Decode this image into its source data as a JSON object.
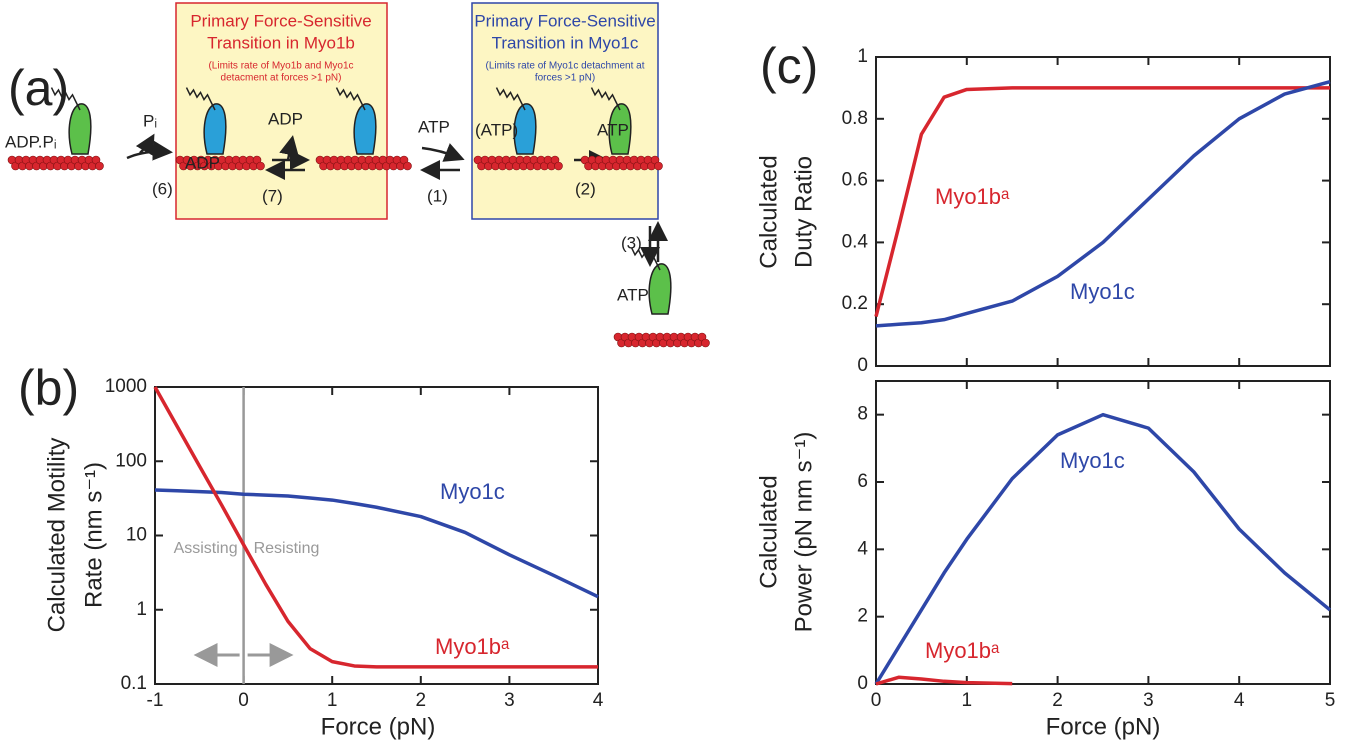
{
  "panel_labels": [
    "(a)",
    "(b)",
    "(c)"
  ],
  "diagram": {
    "box1": {
      "title": [
        "Primary Force-Sensitive",
        "Transition in Myo1b"
      ],
      "subtitle": [
        "(Limits rate of Myo1b and Myo1c",
        "detacment at forces >1 pN)"
      ]
    },
    "box2": {
      "title": [
        "Primary Force-Sensitive",
        "Transition in Myo1c"
      ],
      "subtitle": [
        "(Limits rate of Myo1c detachment at",
        "forces >1 pN)"
      ]
    },
    "labels": [
      "ADP.Pᵢ",
      "Pᵢ",
      "(6)",
      "ADP",
      "ADP",
      "(7)",
      "ATP",
      "(1)",
      "(ATP)",
      "(2)",
      "ATP",
      "(3)",
      "ATP"
    ]
  },
  "chart_data": [
    {
      "type": "line",
      "xlabel": "Force (pN)",
      "ylabel": [
        "Calculated Motility",
        "Rate (nm s⁻¹)"
      ],
      "x": [
        -1,
        -0.75,
        -0.5,
        -0.25,
        0,
        0.25,
        0.5,
        0.75,
        1,
        1.25,
        1.5,
        2,
        2.5,
        3,
        3.5,
        4
      ],
      "xlim": [
        -1,
        4
      ],
      "xticks": [
        -1,
        0,
        1,
        2,
        3,
        4
      ],
      "ylim": [
        0.1,
        1000
      ],
      "yticks": [
        0.1,
        1,
        10,
        100,
        1000
      ],
      "y_scale": "log",
      "reference_line_x": 0,
      "reference_line_color": "#999999",
      "annotations": [
        "Assisting",
        "Resisting"
      ],
      "series": [
        {
          "name": "Myo1c",
          "color": "#2e47a8",
          "values": [
            41,
            40,
            39,
            38,
            36,
            35,
            34,
            32,
            30,
            27,
            24,
            18,
            11,
            5.5,
            2.9,
            1.5
          ]
        },
        {
          "name": "Myo1bᵃ",
          "color": "#d7262e",
          "values": [
            1000,
            295,
            87,
            26,
            7.5,
            2.2,
            0.7,
            0.3,
            0.2,
            0.175,
            0.17,
            0.17,
            0.17,
            0.17,
            0.17,
            0.17
          ]
        }
      ]
    },
    {
      "type": "line",
      "ylabel": [
        "Calculated",
        "Duty Ratio"
      ],
      "x": [
        0,
        0.25,
        0.5,
        0.75,
        1,
        1.5,
        2,
        2.5,
        3,
        3.5,
        4,
        4.5,
        5
      ],
      "xlim": [
        0,
        5
      ],
      "xticks": [
        0,
        1,
        2,
        3,
        4,
        5
      ],
      "xtick_labels": false,
      "ylim": [
        0,
        1
      ],
      "yticks": [
        0,
        0.2,
        0.4,
        0.6,
        0.8,
        1
      ],
      "series": [
        {
          "name": "Myo1bᵃ",
          "color": "#d7262e",
          "values": [
            0.16,
            0.45,
            0.75,
            0.87,
            0.895,
            0.9,
            0.9,
            0.9,
            0.9,
            0.9,
            0.9,
            0.9,
            0.9
          ]
        },
        {
          "name": "Myo1c",
          "color": "#2e47a8",
          "values": [
            0.13,
            0.135,
            0.14,
            0.15,
            0.17,
            0.21,
            0.29,
            0.4,
            0.54,
            0.68,
            0.8,
            0.88,
            0.92
          ]
        }
      ]
    },
    {
      "type": "line",
      "xlabel": "Force (pN)",
      "ylabel": [
        "Calculated",
        "Power (pN nm s⁻¹)"
      ],
      "x": [
        0,
        0.25,
        0.5,
        0.75,
        1,
        1.5,
        2,
        2.5,
        3,
        3.5,
        4,
        4.5,
        5
      ],
      "xlim": [
        0,
        5
      ],
      "xticks": [
        0,
        1,
        2,
        3,
        4,
        5
      ],
      "ylim": [
        0,
        9
      ],
      "yticks": [
        0,
        2,
        4,
        6,
        8
      ],
      "series": [
        {
          "name": "Myo1c",
          "color": "#2e47a8",
          "values": [
            0,
            1.1,
            2.2,
            3.3,
            4.3,
            6.1,
            7.4,
            8,
            7.6,
            6.3,
            4.6,
            3.3,
            2.2
          ]
        },
        {
          "name": "Myo1bᵃ",
          "color": "#d7262e",
          "values": [
            0,
            0.2,
            0.15,
            0.08,
            0.04,
            0.01,
            null,
            null,
            null,
            null,
            null,
            null,
            null
          ]
        }
      ]
    }
  ]
}
